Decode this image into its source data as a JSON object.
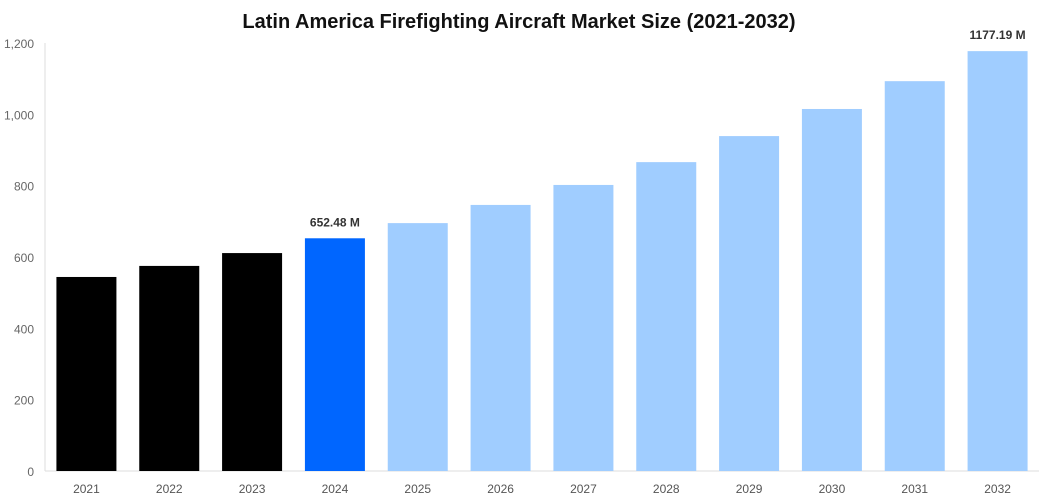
{
  "chart_data": {
    "type": "bar",
    "title": "Latin America Firefighting Aircraft Market Size (2021-2032)",
    "xlabel": "",
    "ylabel": "",
    "ylim": [
      0,
      1200
    ],
    "yticks": [
      "0",
      "200",
      "400",
      "600",
      "800",
      "1,000",
      "1,200"
    ],
    "ytick_values": [
      0,
      200,
      400,
      600,
      800,
      1000,
      1200
    ],
    "categories": [
      "2021",
      "2022",
      "2023",
      "2024",
      "2025",
      "2026",
      "2027",
      "2028",
      "2029",
      "2030",
      "2031",
      "2032"
    ],
    "values": [
      544,
      575,
      611,
      652.48,
      695,
      746,
      802,
      866,
      939,
      1015,
      1093,
      1177.19
    ],
    "bar_colors": [
      "#000000",
      "#000000",
      "#000000",
      "#0066ff",
      "#a0cdff",
      "#a0cdff",
      "#a0cdff",
      "#a0cdff",
      "#a0cdff",
      "#a0cdff",
      "#a0cdff",
      "#a0cdff"
    ],
    "data_labels": [
      {
        "category": "2024",
        "text": "652.48 M"
      },
      {
        "category": "2032",
        "text": "1177.19 M"
      }
    ],
    "grid": false,
    "legend": "none"
  }
}
